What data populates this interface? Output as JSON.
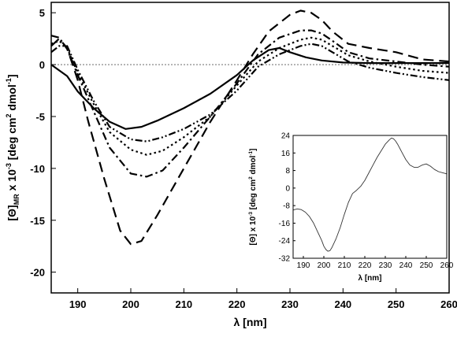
{
  "chart_data": [
    {
      "type": "line",
      "xlabel": "λ [nm]",
      "ylabel": "[Θ]MR x 10-3 [deg cm2 dmol-1]",
      "ylabel_parts": {
        "a": "[Θ]",
        "b": "MR",
        "c": " x 10",
        "d": "-3",
        "e": " [deg cm",
        "f": "2",
        "g": " dmol",
        "h": "-1",
        "i": "]"
      },
      "xlim": [
        185,
        260
      ],
      "ylim": [
        -22,
        6
      ],
      "x_ticks": [
        "190",
        "200",
        "210",
        "220",
        "230",
        "240",
        "250",
        "260"
      ],
      "y_ticks": [
        "5",
        "0",
        "-5",
        "-10",
        "-15",
        "-20"
      ],
      "reference_line": 0,
      "series": [
        {
          "style": "solid",
          "x": [
            185,
            188,
            190,
            193,
            196,
            199,
            202,
            205,
            210,
            215,
            220,
            223,
            226,
            228,
            230,
            233,
            236,
            240,
            245,
            250,
            255,
            260
          ],
          "y": [
            0.0,
            -1.1,
            -2.6,
            -4.2,
            -5.5,
            -6.2,
            -6.0,
            -5.4,
            -4.2,
            -2.8,
            -1.0,
            0.4,
            1.4,
            1.6,
            1.2,
            0.7,
            0.4,
            0.2,
            0.15,
            0.15,
            0.15,
            0.15
          ]
        },
        {
          "style": "dash",
          "x": [
            185,
            186.5,
            188,
            190,
            192,
            195,
            198,
            200,
            202,
            205,
            210,
            215,
            220,
            223,
            226,
            230,
            232,
            234,
            236,
            238,
            241,
            245,
            250,
            255,
            260
          ],
          "y": [
            1.8,
            2.5,
            1.6,
            -1.5,
            -5.5,
            -11.0,
            -16.0,
            -17.3,
            -17.0,
            -14.5,
            -10.0,
            -5.5,
            -1.5,
            1.0,
            3.2,
            4.8,
            5.2,
            5.0,
            4.3,
            3.2,
            2.0,
            1.6,
            1.2,
            0.5,
            0.3
          ]
        },
        {
          "style": "dash-dot",
          "x": [
            185,
            186.5,
            188,
            190,
            193,
            196,
            200,
            203,
            206,
            210,
            215,
            220,
            224,
            228,
            232,
            234,
            236,
            238,
            241,
            245,
            250,
            255,
            260
          ],
          "y": [
            2.8,
            2.6,
            1.5,
            -1.0,
            -4.5,
            -8.0,
            -10.5,
            -10.8,
            -10.2,
            -8.0,
            -5.0,
            -1.8,
            1.0,
            2.6,
            3.3,
            3.3,
            3.0,
            2.3,
            1.2,
            0.6,
            0.3,
            0.0,
            -0.2
          ]
        },
        {
          "style": "dot",
          "x": [
            185,
            186.5,
            188,
            190,
            193,
            196,
            200,
            203,
            206,
            210,
            215,
            220,
            224,
            228,
            232,
            234,
            236,
            238,
            241,
            245,
            250,
            255,
            260
          ],
          "y": [
            2.0,
            2.3,
            1.6,
            -0.8,
            -3.8,
            -6.5,
            -8.2,
            -8.7,
            -8.3,
            -7.0,
            -5.0,
            -2.0,
            0.3,
            1.6,
            2.4,
            2.6,
            2.4,
            1.8,
            0.9,
            0.3,
            -0.2,
            -0.6,
            -0.8
          ]
        },
        {
          "style": "dash-dot-dot",
          "x": [
            185,
            186.5,
            188,
            190,
            193,
            196,
            200,
            203,
            206,
            210,
            215,
            220,
            224,
            228,
            232,
            234,
            236,
            238,
            241,
            245,
            250,
            255,
            260
          ],
          "y": [
            1.2,
            1.8,
            1.8,
            -0.5,
            -3.5,
            -6.0,
            -7.2,
            -7.4,
            -7.0,
            -6.2,
            -4.8,
            -2.5,
            -0.2,
            1.0,
            1.8,
            2.0,
            1.8,
            1.2,
            0.3,
            -0.3,
            -0.8,
            -1.2,
            -1.5
          ]
        }
      ]
    },
    {
      "type": "line",
      "inset": true,
      "xlabel": "λ [nm]",
      "ylabel": "[Θ] x 10-3 [deg cm2 dmol-1]",
      "ylabel_parts": {
        "a": "[Θ] x 10",
        "b": "-3",
        "c": " [deg cm",
        "d": "2",
        "e": " dmol",
        "f": "-1",
        "g": "]"
      },
      "xlim": [
        185,
        260
      ],
      "ylim": [
        -32,
        24
      ],
      "x_ticks": [
        "190",
        "200",
        "210",
        "220",
        "230",
        "240",
        "250",
        "260"
      ],
      "y_ticks": [
        "24",
        "16",
        "8",
        "0",
        "-8",
        "-16",
        "-24",
        "-32"
      ],
      "series": [
        {
          "style": "solid-thin",
          "x": [
            185,
            187,
            189,
            191,
            193,
            195,
            197,
            199,
            200,
            201,
            202,
            203,
            204,
            206,
            208,
            210,
            212,
            214,
            216,
            218,
            220,
            222,
            224,
            226,
            228,
            230,
            232,
            233,
            234,
            235,
            236,
            238,
            240,
            242,
            244,
            246,
            248,
            250,
            252,
            254,
            256,
            258,
            260
          ],
          "y": [
            -10,
            -9.5,
            -9.8,
            -11,
            -13,
            -16,
            -20,
            -24,
            -26.5,
            -28,
            -28.8,
            -28.5,
            -27,
            -23,
            -18,
            -12,
            -6.5,
            -2.5,
            -1,
            0.8,
            3.5,
            7,
            10.5,
            14,
            17,
            20,
            22,
            22.8,
            22.5,
            21.5,
            20,
            16.5,
            13,
            10.5,
            9.5,
            9.5,
            10.5,
            11,
            10,
            8.5,
            7.5,
            7,
            6.5
          ]
        }
      ]
    }
  ]
}
